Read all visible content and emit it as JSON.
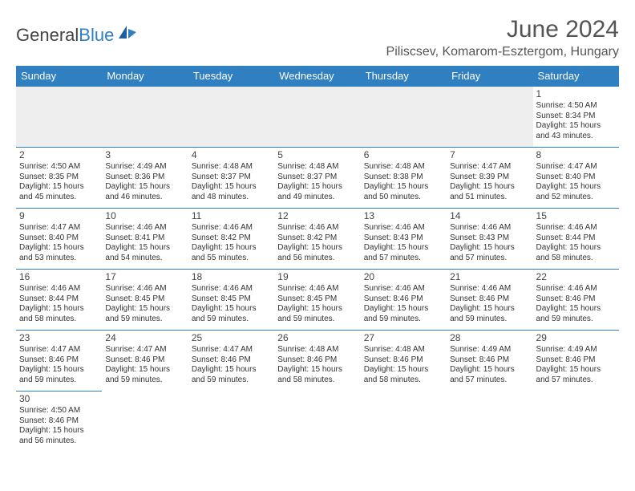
{
  "logo": {
    "text1": "General",
    "text2": "Blue"
  },
  "title": "June 2024",
  "location": "Piliscsev, Komarom-Esztergom, Hungary",
  "colors": {
    "header_bg": "#2f7fc1",
    "header_text": "#ffffff",
    "border": "#2f7fc1",
    "empty_bg": "#eeeeee",
    "text": "#333333"
  },
  "weekdays": [
    "Sunday",
    "Monday",
    "Tuesday",
    "Wednesday",
    "Thursday",
    "Friday",
    "Saturday"
  ],
  "weeks": [
    [
      null,
      null,
      null,
      null,
      null,
      null,
      {
        "n": "1",
        "sr": "Sunrise: 4:50 AM",
        "ss": "Sunset: 8:34 PM",
        "d1": "Daylight: 15 hours",
        "d2": "and 43 minutes."
      }
    ],
    [
      {
        "n": "2",
        "sr": "Sunrise: 4:50 AM",
        "ss": "Sunset: 8:35 PM",
        "d1": "Daylight: 15 hours",
        "d2": "and 45 minutes."
      },
      {
        "n": "3",
        "sr": "Sunrise: 4:49 AM",
        "ss": "Sunset: 8:36 PM",
        "d1": "Daylight: 15 hours",
        "d2": "and 46 minutes."
      },
      {
        "n": "4",
        "sr": "Sunrise: 4:48 AM",
        "ss": "Sunset: 8:37 PM",
        "d1": "Daylight: 15 hours",
        "d2": "and 48 minutes."
      },
      {
        "n": "5",
        "sr": "Sunrise: 4:48 AM",
        "ss": "Sunset: 8:37 PM",
        "d1": "Daylight: 15 hours",
        "d2": "and 49 minutes."
      },
      {
        "n": "6",
        "sr": "Sunrise: 4:48 AM",
        "ss": "Sunset: 8:38 PM",
        "d1": "Daylight: 15 hours",
        "d2": "and 50 minutes."
      },
      {
        "n": "7",
        "sr": "Sunrise: 4:47 AM",
        "ss": "Sunset: 8:39 PM",
        "d1": "Daylight: 15 hours",
        "d2": "and 51 minutes."
      },
      {
        "n": "8",
        "sr": "Sunrise: 4:47 AM",
        "ss": "Sunset: 8:40 PM",
        "d1": "Daylight: 15 hours",
        "d2": "and 52 minutes."
      }
    ],
    [
      {
        "n": "9",
        "sr": "Sunrise: 4:47 AM",
        "ss": "Sunset: 8:40 PM",
        "d1": "Daylight: 15 hours",
        "d2": "and 53 minutes."
      },
      {
        "n": "10",
        "sr": "Sunrise: 4:46 AM",
        "ss": "Sunset: 8:41 PM",
        "d1": "Daylight: 15 hours",
        "d2": "and 54 minutes."
      },
      {
        "n": "11",
        "sr": "Sunrise: 4:46 AM",
        "ss": "Sunset: 8:42 PM",
        "d1": "Daylight: 15 hours",
        "d2": "and 55 minutes."
      },
      {
        "n": "12",
        "sr": "Sunrise: 4:46 AM",
        "ss": "Sunset: 8:42 PM",
        "d1": "Daylight: 15 hours",
        "d2": "and 56 minutes."
      },
      {
        "n": "13",
        "sr": "Sunrise: 4:46 AM",
        "ss": "Sunset: 8:43 PM",
        "d1": "Daylight: 15 hours",
        "d2": "and 57 minutes."
      },
      {
        "n": "14",
        "sr": "Sunrise: 4:46 AM",
        "ss": "Sunset: 8:43 PM",
        "d1": "Daylight: 15 hours",
        "d2": "and 57 minutes."
      },
      {
        "n": "15",
        "sr": "Sunrise: 4:46 AM",
        "ss": "Sunset: 8:44 PM",
        "d1": "Daylight: 15 hours",
        "d2": "and 58 minutes."
      }
    ],
    [
      {
        "n": "16",
        "sr": "Sunrise: 4:46 AM",
        "ss": "Sunset: 8:44 PM",
        "d1": "Daylight: 15 hours",
        "d2": "and 58 minutes."
      },
      {
        "n": "17",
        "sr": "Sunrise: 4:46 AM",
        "ss": "Sunset: 8:45 PM",
        "d1": "Daylight: 15 hours",
        "d2": "and 59 minutes."
      },
      {
        "n": "18",
        "sr": "Sunrise: 4:46 AM",
        "ss": "Sunset: 8:45 PM",
        "d1": "Daylight: 15 hours",
        "d2": "and 59 minutes."
      },
      {
        "n": "19",
        "sr": "Sunrise: 4:46 AM",
        "ss": "Sunset: 8:45 PM",
        "d1": "Daylight: 15 hours",
        "d2": "and 59 minutes."
      },
      {
        "n": "20",
        "sr": "Sunrise: 4:46 AM",
        "ss": "Sunset: 8:46 PM",
        "d1": "Daylight: 15 hours",
        "d2": "and 59 minutes."
      },
      {
        "n": "21",
        "sr": "Sunrise: 4:46 AM",
        "ss": "Sunset: 8:46 PM",
        "d1": "Daylight: 15 hours",
        "d2": "and 59 minutes."
      },
      {
        "n": "22",
        "sr": "Sunrise: 4:46 AM",
        "ss": "Sunset: 8:46 PM",
        "d1": "Daylight: 15 hours",
        "d2": "and 59 minutes."
      }
    ],
    [
      {
        "n": "23",
        "sr": "Sunrise: 4:47 AM",
        "ss": "Sunset: 8:46 PM",
        "d1": "Daylight: 15 hours",
        "d2": "and 59 minutes."
      },
      {
        "n": "24",
        "sr": "Sunrise: 4:47 AM",
        "ss": "Sunset: 8:46 PM",
        "d1": "Daylight: 15 hours",
        "d2": "and 59 minutes."
      },
      {
        "n": "25",
        "sr": "Sunrise: 4:47 AM",
        "ss": "Sunset: 8:46 PM",
        "d1": "Daylight: 15 hours",
        "d2": "and 59 minutes."
      },
      {
        "n": "26",
        "sr": "Sunrise: 4:48 AM",
        "ss": "Sunset: 8:46 PM",
        "d1": "Daylight: 15 hours",
        "d2": "and 58 minutes."
      },
      {
        "n": "27",
        "sr": "Sunrise: 4:48 AM",
        "ss": "Sunset: 8:46 PM",
        "d1": "Daylight: 15 hours",
        "d2": "and 58 minutes."
      },
      {
        "n": "28",
        "sr": "Sunrise: 4:49 AM",
        "ss": "Sunset: 8:46 PM",
        "d1": "Daylight: 15 hours",
        "d2": "and 57 minutes."
      },
      {
        "n": "29",
        "sr": "Sunrise: 4:49 AM",
        "ss": "Sunset: 8:46 PM",
        "d1": "Daylight: 15 hours",
        "d2": "and 57 minutes."
      }
    ],
    [
      {
        "n": "30",
        "sr": "Sunrise: 4:50 AM",
        "ss": "Sunset: 8:46 PM",
        "d1": "Daylight: 15 hours",
        "d2": "and 56 minutes."
      },
      null,
      null,
      null,
      null,
      null,
      null
    ]
  ]
}
